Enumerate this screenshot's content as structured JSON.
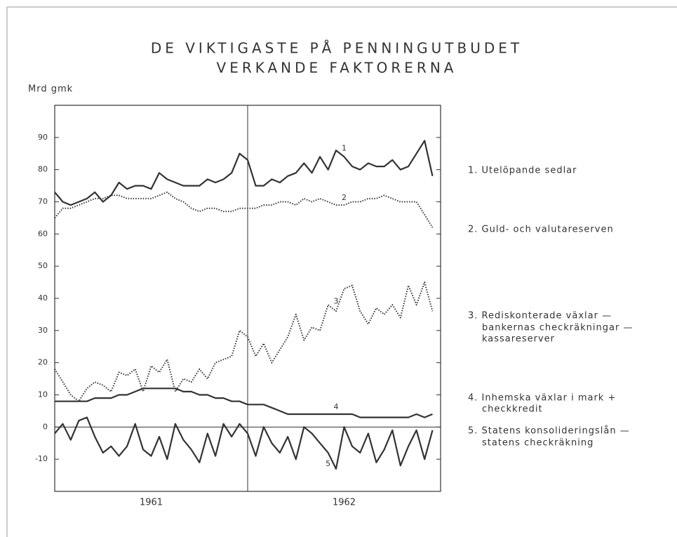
{
  "chart_data": {
    "type": "line",
    "title": [
      "DE VIKTIGASTE PÅ PENNINGUTBUDET",
      "VERKANDE FAKTORERNA"
    ],
    "y_label": "Mrd gmk",
    "x": [
      1961,
      1961.042,
      1961.083,
      1961.125,
      1961.167,
      1961.208,
      1961.25,
      1961.292,
      1961.333,
      1961.375,
      1961.417,
      1961.458,
      1961.5,
      1961.542,
      1961.583,
      1961.625,
      1961.667,
      1961.708,
      1961.75,
      1961.792,
      1961.833,
      1961.875,
      1961.917,
      1961.958,
      1962,
      1962.042,
      1962.083,
      1962.125,
      1962.167,
      1962.208,
      1962.25,
      1962.292,
      1962.333,
      1962.375,
      1962.417,
      1962.458,
      1962.5,
      1962.542,
      1962.583,
      1962.625,
      1962.667,
      1962.708,
      1962.75,
      1962.792,
      1962.833,
      1962.875,
      1962.917,
      1962.958
    ],
    "xlim": [
      1961,
      1963
    ],
    "xticks": [
      {
        "value": 1961.5,
        "label": "1961"
      },
      {
        "value": 1962.5,
        "label": "1962"
      }
    ],
    "vlines": [
      1962
    ],
    "ylim": [
      -20,
      100
    ],
    "yticks": [
      -10,
      0,
      10,
      20,
      30,
      40,
      50,
      60,
      70,
      80,
      90
    ],
    "hlines": [
      0
    ],
    "series": [
      {
        "name": [
          "1. Utelöpande sedlar"
        ],
        "label": "1",
        "color": "#333333",
        "style": "solid",
        "values": [
          73,
          70,
          69,
          70,
          71,
          73,
          70,
          72,
          76,
          74,
          75,
          75,
          74,
          79,
          77,
          76,
          75,
          75,
          75,
          77,
          76,
          77,
          79,
          85,
          83,
          75,
          75,
          77,
          76,
          78,
          79,
          82,
          79,
          84,
          80,
          86,
          84,
          81,
          80,
          82,
          81,
          81,
          83,
          80,
          81,
          85,
          89,
          78
        ]
      },
      {
        "name": [
          "2. Guld- och valutareserven"
        ],
        "label": "2",
        "color": "#333333",
        "style": "dotted",
        "values": [
          65,
          68,
          68,
          69,
          70,
          71,
          71,
          72,
          72,
          71,
          71,
          71,
          71,
          72,
          73,
          71,
          70,
          68,
          67,
          68,
          68,
          67,
          67,
          68,
          68,
          68,
          69,
          69,
          70,
          70,
          69,
          71,
          70,
          71,
          70,
          69,
          69,
          70,
          70,
          71,
          71,
          72,
          71,
          70,
          70,
          70,
          66,
          62
        ]
      },
      {
        "name": [
          "3. Rediskonterade växlar —",
          "bankernas checkräkningar —",
          "kassareserver"
        ],
        "label": "3",
        "color": "#333333",
        "style": "dotted",
        "values": [
          18,
          14,
          10,
          8,
          12,
          14,
          13,
          11,
          17,
          16,
          18,
          11,
          19,
          17,
          21,
          11,
          15,
          14,
          18,
          15,
          20,
          21,
          22,
          30,
          28,
          22,
          26,
          20,
          24,
          28,
          35,
          27,
          31,
          30,
          38,
          36,
          43,
          44,
          36,
          32,
          37,
          35,
          38,
          34,
          44,
          38,
          45,
          36
        ]
      },
      {
        "name": [
          "4. Inhemska växlar i mark +",
          "checkkredit"
        ],
        "label": "4",
        "color": "#333333",
        "style": "solid",
        "values": [
          8,
          8,
          8,
          8,
          8,
          9,
          9,
          9,
          10,
          10,
          11,
          12,
          12,
          12,
          12,
          12,
          11,
          11,
          10,
          10,
          9,
          9,
          8,
          8,
          7,
          7,
          7,
          6,
          5,
          4,
          4,
          4,
          4,
          4,
          4,
          4,
          4,
          4,
          3,
          3,
          3,
          3,
          3,
          3,
          3,
          4,
          3,
          4
        ]
      },
      {
        "name": [
          "5. Statens konsolideringslån —",
          "statens checkräkning"
        ],
        "label": "5",
        "color": "#333333",
        "style": "solid",
        "values": [
          -2,
          1,
          -4,
          2,
          3,
          -3,
          -8,
          -6,
          -9,
          -6,
          1,
          -7,
          -9,
          -3,
          -10,
          1,
          -4,
          -7,
          -11,
          -2,
          -9,
          1,
          -3,
          1,
          -2,
          -9,
          0,
          -5,
          -8,
          -3,
          -10,
          0,
          -2,
          -5,
          -8,
          -13,
          0,
          -6,
          -8,
          -2,
          -11,
          -7,
          -1,
          -12,
          -6,
          -1,
          -10,
          -1
        ]
      }
    ]
  }
}
